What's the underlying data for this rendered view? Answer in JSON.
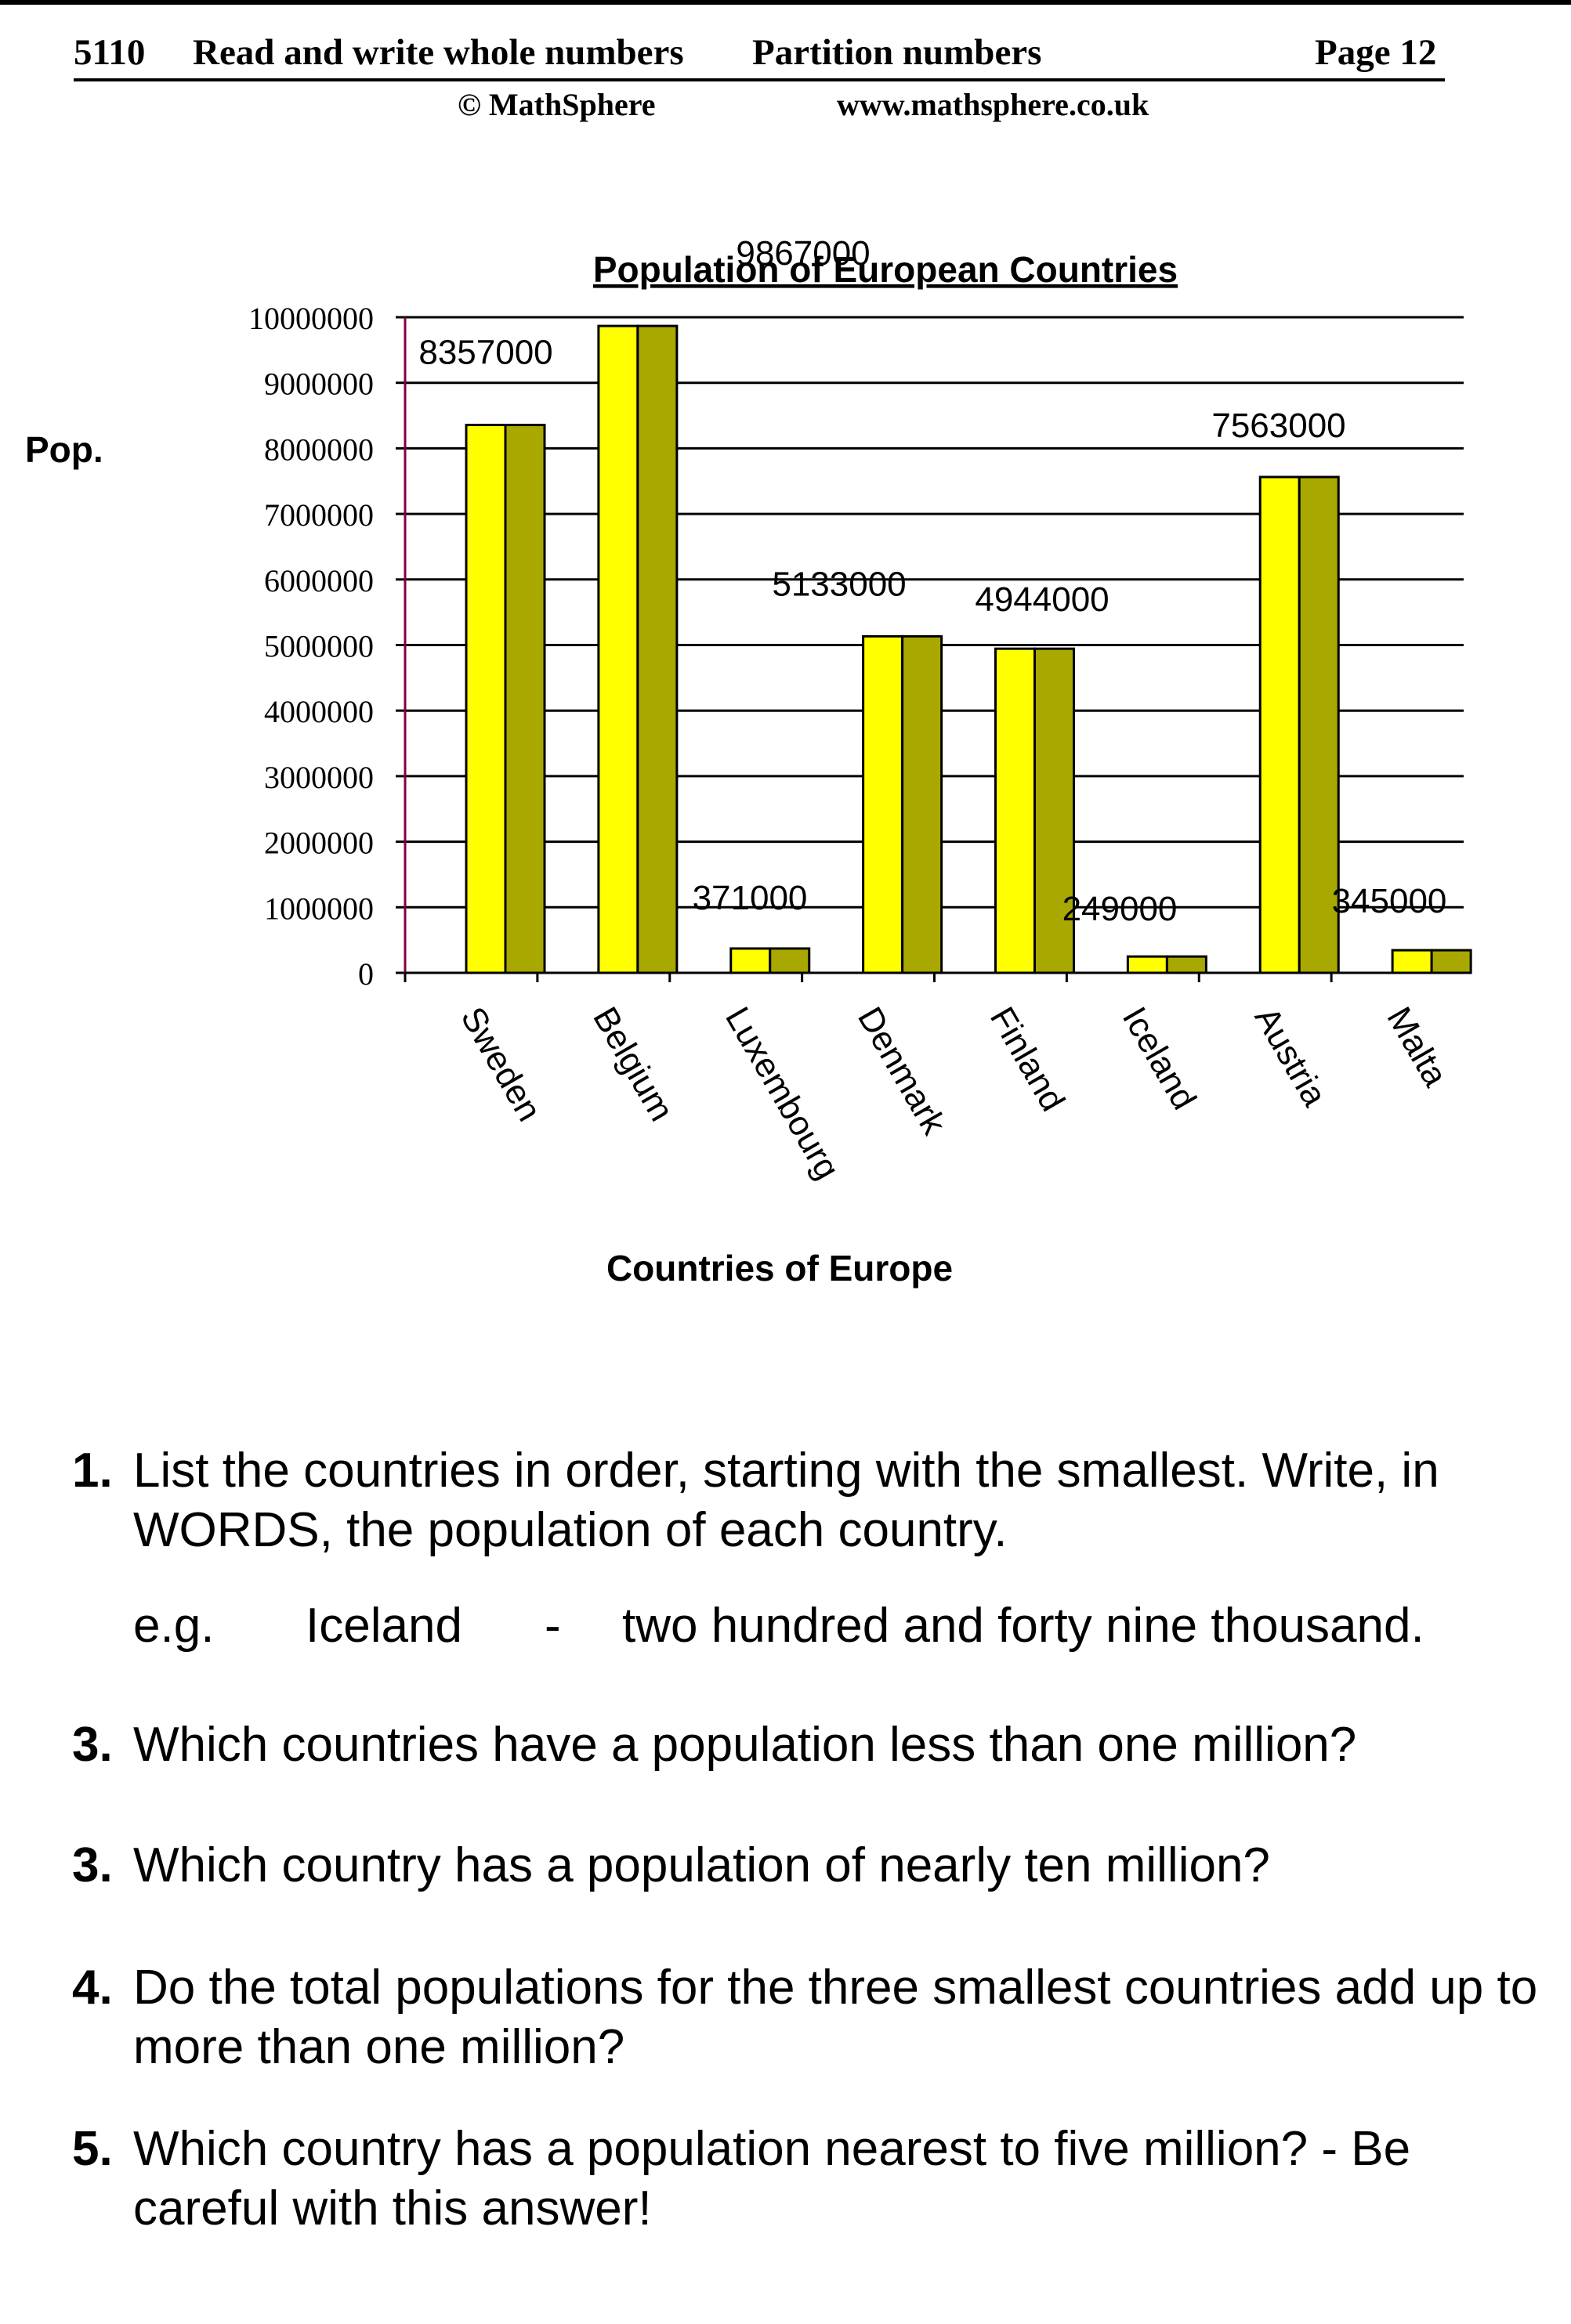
{
  "header": {
    "code": "5110",
    "topic": "Read and write whole numbers",
    "subtopic": "Partition numbers",
    "page": "Page 12",
    "copyright": "© MathSphere",
    "website": "www.mathsphere.co.uk"
  },
  "chart_data": {
    "type": "bar",
    "title": "Population of European Countries",
    "xlabel": "Countries of Europe",
    "ylabel": "Pop.",
    "ylim": [
      0,
      10000000
    ],
    "yticks": [
      "0",
      "1000000",
      "2000000",
      "3000000",
      "4000000",
      "5000000",
      "6000000",
      "7000000",
      "8000000",
      "9000000",
      "10000000"
    ],
    "grid": true,
    "categories": [
      "Sweden",
      "Belgium",
      "Luxembourg",
      "Denmark",
      "Finland",
      "Iceland",
      "Austria",
      "Malta"
    ],
    "values": [
      8357000,
      9867000,
      371000,
      5133000,
      4944000,
      249000,
      7563000,
      345000
    ],
    "data_labels": [
      "8357000",
      "9867000",
      "371000",
      "5133000",
      "4944000",
      "249000",
      "7563000",
      "345000"
    ],
    "colors": {
      "bar_front": "#ffff00",
      "bar_side": "#a8a800",
      "axis_left": "#800040",
      "grid": "#000000"
    }
  },
  "questions": [
    {
      "number": "1.",
      "text": "List the countries in order, starting with the smallest. Write, in WORDS, the population of each country."
    },
    {
      "number": "3.",
      "text": "Which countries have a population less than one million?"
    },
    {
      "number": "3.",
      "text": "Which country has a population of nearly ten million?"
    },
    {
      "number": "4.",
      "text": "Do the total populations for the three smallest countries add up to more than one million?"
    },
    {
      "number": "5.",
      "text": "Which country has a population nearest to five million? - Be careful with this answer!"
    }
  ],
  "example": {
    "prefix": "e.g.",
    "country": "Iceland",
    "dash": "-",
    "words": "two hundred and forty nine thousand."
  }
}
